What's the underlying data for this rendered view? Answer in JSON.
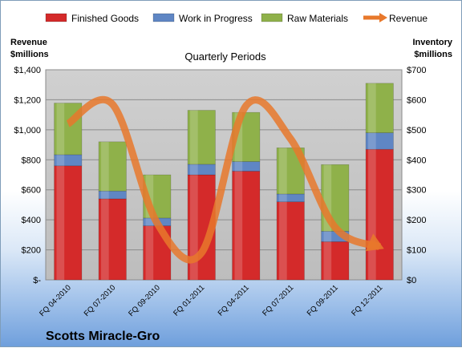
{
  "chart_data": {
    "type": "bar",
    "stacked": true,
    "title": "Quarterly Periods",
    "company": "Scotts Miracle-Gro",
    "categories": [
      "FQ 04-2010",
      "FQ 07-2010",
      "FQ 09-2010",
      "FQ 01-2011",
      "FQ 04-2011",
      "FQ 07-2011",
      "FQ 09-2011",
      "FQ 12-2011"
    ],
    "left_axis": {
      "label_line1": "Revenue",
      "label_line2": "$millions",
      "ylim": [
        0,
        1400
      ],
      "ticks": [
        0,
        200,
        400,
        600,
        800,
        1000,
        1200,
        1400
      ],
      "tick_labels": [
        "$-",
        "$200",
        "$400",
        "$600",
        "$800",
        "$1,000",
        "$1,200",
        "$1,400"
      ]
    },
    "right_axis": {
      "label_line1": "Inventory",
      "label_line2": "$millions",
      "ylim": [
        0,
        700
      ],
      "ticks": [
        0,
        100,
        200,
        300,
        400,
        500,
        600,
        700
      ],
      "tick_labels": [
        "$0",
        "$100",
        "$200",
        "$300",
        "$400",
        "$500",
        "$600",
        "$700"
      ]
    },
    "grid": true,
    "legend_position": "top",
    "series": [
      {
        "name": "Finished Goods",
        "axis": "right",
        "kind": "bar",
        "color": "#d42a2a",
        "values": [
          380,
          270,
          180,
          350,
          362,
          260,
          127,
          435
        ]
      },
      {
        "name": "Work in Progress",
        "axis": "right",
        "kind": "bar",
        "color": "#5f86c4",
        "values": [
          37,
          26,
          26,
          35,
          32,
          26,
          35,
          55
        ]
      },
      {
        "name": "Raw Materials",
        "axis": "right",
        "kind": "bar",
        "color": "#8fb14a",
        "values": [
          172,
          164,
          144,
          180,
          164,
          154,
          222,
          165
        ]
      },
      {
        "name": "Revenue",
        "axis": "left",
        "kind": "line",
        "color": "#e8782b",
        "values": [
          1040,
          1170,
          380,
          180,
          1160,
          940,
          350,
          220
        ]
      }
    ]
  }
}
